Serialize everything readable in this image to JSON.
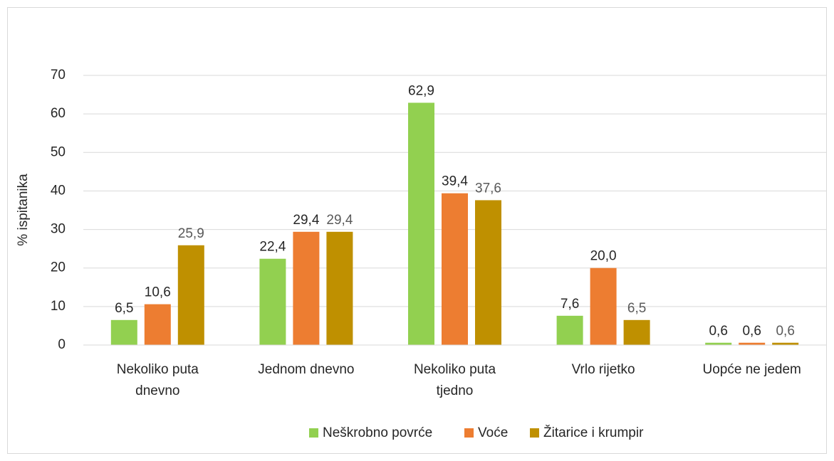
{
  "chart_data": {
    "type": "bar",
    "y_label": "% ispitanika",
    "categories": [
      "Nekoliko puta dnevno",
      "Jednom dnevno",
      "Nekoliko puta tjedno",
      "Vrlo rijetko",
      "Uopće ne jedem"
    ],
    "series": [
      {
        "name": "Neškrobno povrće",
        "color": "#92d050",
        "label_color": "#262626",
        "values": [
          6.5,
          22.4,
          62.9,
          7.6,
          0.6
        ],
        "value_labels": [
          "6,5",
          "22,4",
          "62,9",
          "7,6",
          "0,6"
        ]
      },
      {
        "name": "Voće",
        "color": "#ed7d31",
        "label_color": "#262626",
        "values": [
          10.6,
          29.4,
          39.4,
          20.0,
          0.6
        ],
        "value_labels": [
          "10,6",
          "29,4",
          "39,4",
          "20,0",
          "0,6"
        ]
      },
      {
        "name": "Žitarice i krumpir",
        "color": "#bf9000",
        "label_color": "#595959",
        "values": [
          25.9,
          29.4,
          37.6,
          6.5,
          0.6
        ],
        "value_labels": [
          "25,9",
          "29,4",
          "37,6",
          "6,5",
          "0,6"
        ]
      }
    ],
    "ylim": [
      0,
      70
    ],
    "yticks": [
      0,
      10,
      20,
      30,
      40,
      50,
      60,
      70
    ],
    "grid": true,
    "legend": "bottom"
  }
}
